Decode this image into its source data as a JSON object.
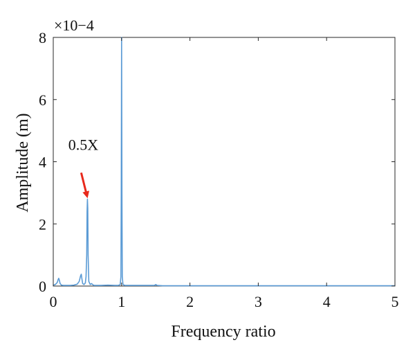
{
  "chart_data": {
    "type": "line",
    "xlabel": "Frequency ratio",
    "ylabel": "Amplitude (m)",
    "xlim": [
      0,
      5
    ],
    "ylim": [
      0,
      8
    ],
    "y_multiplier": "×10−4",
    "x_ticks": [
      {
        "value": 0,
        "label": "0"
      },
      {
        "value": 1,
        "label": "1"
      },
      {
        "value": 2,
        "label": "2"
      },
      {
        "value": 3,
        "label": "3"
      },
      {
        "value": 4,
        "label": "4"
      },
      {
        "value": 5,
        "label": "5"
      }
    ],
    "y_ticks": [
      {
        "value": 0,
        "label": "0"
      },
      {
        "value": 2,
        "label": "2"
      },
      {
        "value": 4,
        "label": "4"
      },
      {
        "value": 6,
        "label": "6"
      },
      {
        "value": 8,
        "label": "8"
      }
    ],
    "grid": false,
    "colors": {
      "series": "#5b9bd5",
      "annotation_arrow": "#e8291c"
    },
    "series": [
      {
        "x": [
          0,
          0.03,
          0.06,
          0.07,
          0.08,
          0.09,
          0.1,
          0.12,
          0.15,
          0.2,
          0.25,
          0.3,
          0.35,
          0.38,
          0.4,
          0.41,
          0.42,
          0.43,
          0.45,
          0.47,
          0.48,
          0.49,
          0.495,
          0.5,
          0.505,
          0.51,
          0.52,
          0.54,
          0.56,
          0.58,
          0.6,
          0.65,
          0.7,
          0.8,
          0.9,
          0.95,
          0.98,
          0.99,
          0.995,
          1.0,
          1.005,
          1.01,
          1.02,
          1.05,
          1.1,
          1.2,
          1.4,
          1.48,
          1.5,
          1.52,
          1.6,
          1.8,
          2.0,
          2.5,
          3.0,
          3.5,
          4.0,
          4.5,
          5.0
        ],
        "y": [
          0.03,
          0.05,
          0.12,
          0.2,
          0.25,
          0.18,
          0.08,
          0.03,
          0.02,
          0.02,
          0.02,
          0.03,
          0.06,
          0.15,
          0.33,
          0.38,
          0.22,
          0.08,
          0.05,
          0.1,
          0.3,
          1.0,
          2.4,
          2.8,
          2.5,
          1.0,
          0.15,
          0.05,
          0.08,
          0.04,
          0.02,
          0.02,
          0.02,
          0.03,
          0.02,
          0.02,
          0.05,
          0.3,
          3.0,
          8.0,
          3.0,
          0.3,
          0.05,
          0.02,
          0.02,
          0.02,
          0.02,
          0.02,
          0.05,
          0.02,
          0.01,
          0.01,
          0.01,
          0.01,
          0.01,
          0.01,
          0.01,
          0.01,
          0.01
        ]
      }
    ],
    "annotations": [
      {
        "text": "0.5X",
        "x": 0.5,
        "y": 2.8
      }
    ]
  }
}
